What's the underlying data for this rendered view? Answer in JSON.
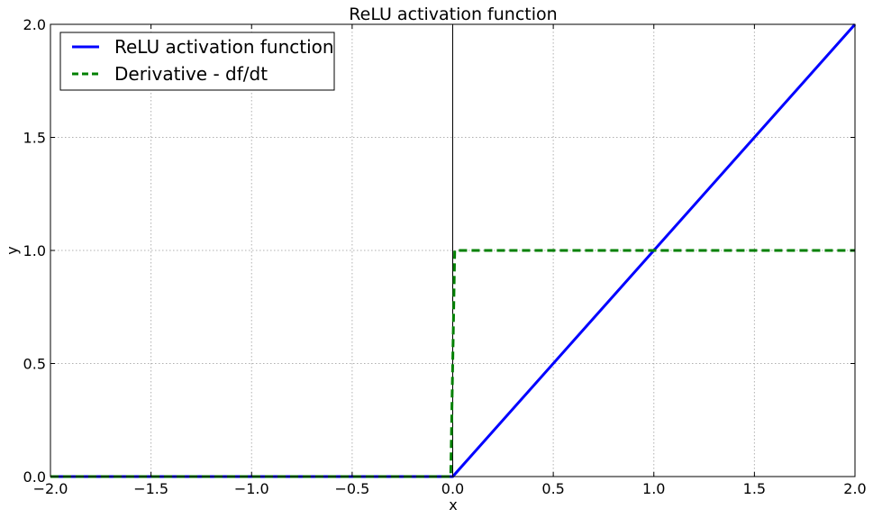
{
  "chart_data": {
    "type": "line",
    "title": "ReLU activation function",
    "xlabel": "x",
    "ylabel": "y",
    "xlim": [
      -2.0,
      2.0
    ],
    "ylim": [
      0.0,
      2.0
    ],
    "grid": true,
    "legend_position": "top-left",
    "x_ticks": [
      -2.0,
      -1.5,
      -1.0,
      -0.5,
      0.0,
      0.5,
      1.0,
      1.5,
      2.0
    ],
    "x_tick_labels": [
      "−2.0",
      "−1.5",
      "−1.0",
      "−0.5",
      "0.0",
      "0.5",
      "1.0",
      "1.5",
      "2.0"
    ],
    "y_ticks": [
      0.0,
      0.5,
      1.0,
      1.5,
      2.0
    ],
    "y_tick_labels": [
      "0.0",
      "0.5",
      "1.0",
      "1.5",
      "2.0"
    ],
    "series": [
      {
        "name": "ReLU activation function",
        "color": "#0000ff",
        "style": "solid",
        "x": [
          -2.0,
          0.0,
          2.0
        ],
        "y": [
          0.0,
          0.0,
          2.0
        ]
      },
      {
        "name": "Derivative - df/dt",
        "color": "#008000",
        "style": "dashed",
        "x": [
          -2.0,
          -0.01,
          0.01,
          2.0
        ],
        "y": [
          0.0,
          0.0,
          1.0,
          1.0
        ]
      }
    ]
  }
}
